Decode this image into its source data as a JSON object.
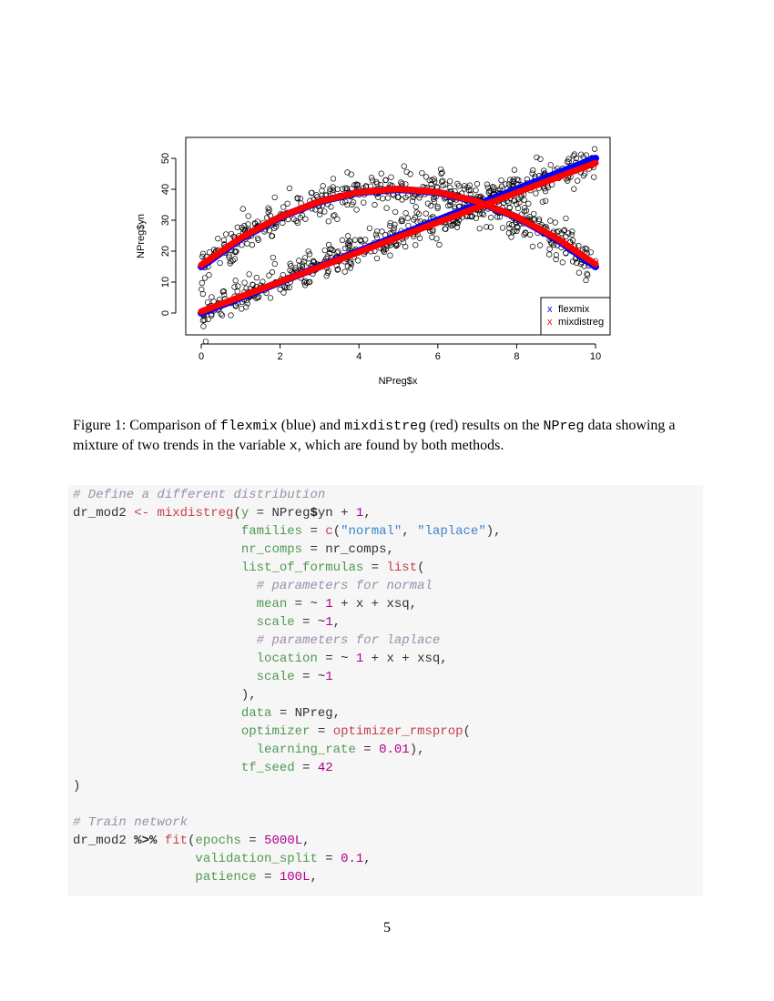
{
  "chart_data": {
    "type": "scatter",
    "xlabel": "NPreg$x",
    "ylabel": "NPreg$yn",
    "xlim": [
      -0.4,
      10.4
    ],
    "ylim": [
      -7,
      57
    ],
    "xticks": [
      0,
      2,
      4,
      6,
      8,
      10
    ],
    "yticks": [
      0,
      10,
      20,
      30,
      40,
      50
    ],
    "grid": false,
    "legend": {
      "placement": "bottom-right",
      "entries": [
        {
          "label": "flexmix",
          "color": "#0000ff",
          "marker": "x"
        },
        {
          "label": "mixdistreg",
          "color": "#ff0000",
          "marker": "x"
        }
      ]
    },
    "points_marker": "open-circle",
    "fitted_lines": [
      {
        "name": "flexmix",
        "color": "#0000ff",
        "x": [
          0,
          1,
          2,
          3,
          4,
          5,
          6,
          7,
          8,
          9,
          10
        ],
        "y": [
          0,
          5,
          10,
          15,
          20,
          25,
          30,
          35,
          40,
          45,
          50
        ]
      },
      {
        "name": "flexmix",
        "color": "#0000ff",
        "x": [
          0,
          1,
          2,
          3,
          4,
          5,
          6,
          7,
          8,
          9,
          10
        ],
        "y": [
          15,
          24,
          31,
          36,
          39,
          40,
          39,
          36,
          31,
          24,
          15
        ]
      },
      {
        "name": "mixdistreg",
        "color": "#ff0000",
        "x": [
          0,
          1,
          2,
          3,
          4,
          5,
          6,
          7,
          8,
          9,
          10
        ],
        "y": [
          0.5,
          5.3,
          10.1,
          14.9,
          19.7,
          24.5,
          29.3,
          34.1,
          38.9,
          43.7,
          48.5
        ]
      },
      {
        "name": "mixdistreg",
        "color": "#ff0000",
        "x": [
          0,
          1,
          2,
          3,
          4,
          5,
          6,
          7,
          8,
          9,
          10
        ],
        "y": [
          15.5,
          24.3,
          31.1,
          36.1,
          39.1,
          40.1,
          39.1,
          36.1,
          31.1,
          24.3,
          15.8
        ]
      }
    ]
  },
  "caption": [
    {
      "t": "Figure 1: Comparison of ",
      "m": false
    },
    {
      "t": "flexmix",
      "m": true
    },
    {
      "t": " (blue) and ",
      "m": false
    },
    {
      "t": "mixdistreg",
      "m": true
    },
    {
      "t": " (red) results on the ",
      "m": false
    },
    {
      "t": "NPreg",
      "m": true
    },
    {
      "t": " data showing a mixture of two trends in the variable ",
      "m": false
    },
    {
      "t": "x",
      "m": true
    },
    {
      "t": ", which are found by both methods.",
      "m": false
    }
  ],
  "code": [
    [
      [
        "com",
        "# Define a different distribution"
      ]
    ],
    [
      [
        "plain",
        "dr_mod2 "
      ],
      [
        "op",
        "<-"
      ],
      [
        "plain",
        " "
      ],
      [
        "fn",
        "mixdistreg"
      ],
      [
        "plain",
        "("
      ],
      [
        "arg",
        "y"
      ],
      [
        "plain",
        " = NPreg"
      ],
      [
        "bold",
        "$"
      ],
      [
        "plain",
        "yn + "
      ],
      [
        "num",
        "1"
      ],
      [
        "plain",
        ","
      ]
    ],
    [
      [
        "plain",
        "                      "
      ],
      [
        "arg",
        "families"
      ],
      [
        "plain",
        " = "
      ],
      [
        "fn",
        "c"
      ],
      [
        "plain",
        "("
      ],
      [
        "str",
        "\"normal\""
      ],
      [
        "plain",
        ", "
      ],
      [
        "str",
        "\"laplace\""
      ],
      [
        "plain",
        "),"
      ]
    ],
    [
      [
        "plain",
        "                      "
      ],
      [
        "arg",
        "nr_comps"
      ],
      [
        "plain",
        " = nr_comps,"
      ]
    ],
    [
      [
        "plain",
        "                      "
      ],
      [
        "arg",
        "list_of_formulas"
      ],
      [
        "plain",
        " = "
      ],
      [
        "fn",
        "list"
      ],
      [
        "plain",
        "("
      ]
    ],
    [
      [
        "plain",
        "                        "
      ],
      [
        "com",
        "# parameters for normal"
      ]
    ],
    [
      [
        "plain",
        "                        "
      ],
      [
        "arg",
        "mean"
      ],
      [
        "plain",
        " = ~ "
      ],
      [
        "num",
        "1"
      ],
      [
        "plain",
        " + x + xsq,"
      ]
    ],
    [
      [
        "plain",
        "                        "
      ],
      [
        "arg",
        "scale"
      ],
      [
        "plain",
        " = ~"
      ],
      [
        "num",
        "1"
      ],
      [
        "plain",
        ","
      ]
    ],
    [
      [
        "plain",
        "                        "
      ],
      [
        "com",
        "# parameters for laplace"
      ]
    ],
    [
      [
        "plain",
        "                        "
      ],
      [
        "arg",
        "location"
      ],
      [
        "plain",
        " = ~ "
      ],
      [
        "num",
        "1"
      ],
      [
        "plain",
        " + x + xsq,"
      ]
    ],
    [
      [
        "plain",
        "                        "
      ],
      [
        "arg",
        "scale"
      ],
      [
        "plain",
        " = ~"
      ],
      [
        "num",
        "1"
      ]
    ],
    [
      [
        "plain",
        "                      ),"
      ]
    ],
    [
      [
        "plain",
        "                      "
      ],
      [
        "arg",
        "data"
      ],
      [
        "plain",
        " = NPreg,"
      ]
    ],
    [
      [
        "plain",
        "                      "
      ],
      [
        "arg",
        "optimizer"
      ],
      [
        "plain",
        " = "
      ],
      [
        "fn",
        "optimizer_rmsprop"
      ],
      [
        "plain",
        "("
      ]
    ],
    [
      [
        "plain",
        "                        "
      ],
      [
        "arg",
        "learning_rate"
      ],
      [
        "plain",
        " = "
      ],
      [
        "num",
        "0.01"
      ],
      [
        "plain",
        "),"
      ]
    ],
    [
      [
        "plain",
        "                      "
      ],
      [
        "arg",
        "tf_seed"
      ],
      [
        "plain",
        " = "
      ],
      [
        "num",
        "42"
      ]
    ],
    [
      [
        "plain",
        ")"
      ]
    ],
    [
      [
        "plain",
        ""
      ]
    ],
    [
      [
        "com",
        "# Train network"
      ]
    ],
    [
      [
        "plain",
        "dr_mod2 "
      ],
      [
        "bold",
        "%>%"
      ],
      [
        "plain",
        " "
      ],
      [
        "fn",
        "fit"
      ],
      [
        "plain",
        "("
      ],
      [
        "arg",
        "epochs"
      ],
      [
        "plain",
        " = "
      ],
      [
        "num",
        "5000L"
      ],
      [
        "plain",
        ","
      ]
    ],
    [
      [
        "plain",
        "                "
      ],
      [
        "arg",
        "validation_split"
      ],
      [
        "plain",
        " = "
      ],
      [
        "num",
        "0.1"
      ],
      [
        "plain",
        ","
      ]
    ],
    [
      [
        "plain",
        "                "
      ],
      [
        "arg",
        "patience"
      ],
      [
        "plain",
        " = "
      ],
      [
        "num",
        "100L"
      ],
      [
        "plain",
        ","
      ]
    ]
  ],
  "page_number": "5"
}
